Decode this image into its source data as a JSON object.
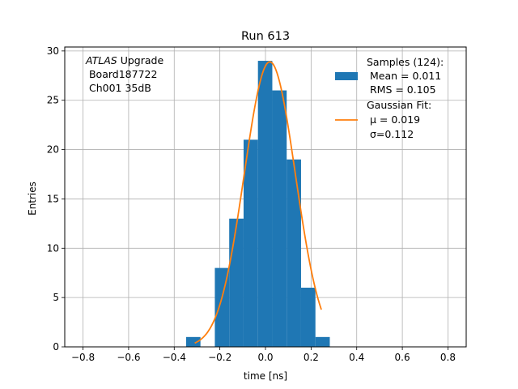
{
  "chart_data": {
    "type": "bar",
    "title": "Run 613",
    "xlabel": "time [ns]",
    "ylabel": "Entries",
    "xlim": [
      -0.88,
      0.88
    ],
    "ylim": [
      0,
      30.4
    ],
    "grid": true,
    "xticks": [
      -0.8,
      -0.6,
      -0.4,
      -0.2,
      0.0,
      0.2,
      0.4,
      0.6,
      0.8
    ],
    "xtick_labels": [
      "−0.8",
      "−0.6",
      "−0.4",
      "−0.2",
      "0.0",
      "0.2",
      "0.4",
      "0.6",
      "0.8"
    ],
    "yticks": [
      0,
      5,
      10,
      15,
      20,
      25,
      30
    ],
    "ytick_labels": [
      "0",
      "5",
      "10",
      "15",
      "20",
      "25",
      "30"
    ],
    "histogram": {
      "name": "Samples (124):",
      "color": "#1f77b4",
      "bin_edges": [
        -0.348,
        -0.285,
        -0.222,
        -0.159,
        -0.096,
        -0.033,
        0.03,
        0.093,
        0.156,
        0.219,
        0.282,
        0.345
      ],
      "counts": [
        1,
        0,
        8,
        13,
        21,
        29,
        26,
        19,
        6,
        1,
        0
      ]
    },
    "fit": {
      "name": "Gaussian Fit:",
      "color": "#ff7f0e",
      "amplitude": 28.9,
      "mu": 0.019,
      "sigma": 0.112,
      "x_range": [
        -0.31,
        0.245
      ]
    },
    "legend": {
      "placement": "top-right",
      "entries": [
        {
          "label_lines": [
            "Samples (124):",
            " Mean = 0.011",
            " RMS = 0.105"
          ]
        },
        {
          "label_lines": [
            "Gaussian Fit:",
            " μ = 0.019",
            " σ=0.112"
          ]
        }
      ]
    },
    "annotation": {
      "lines": [
        "ATLAS Upgrade",
        " Board187722",
        " Ch001 35dB"
      ],
      "placement": "top-left"
    }
  }
}
